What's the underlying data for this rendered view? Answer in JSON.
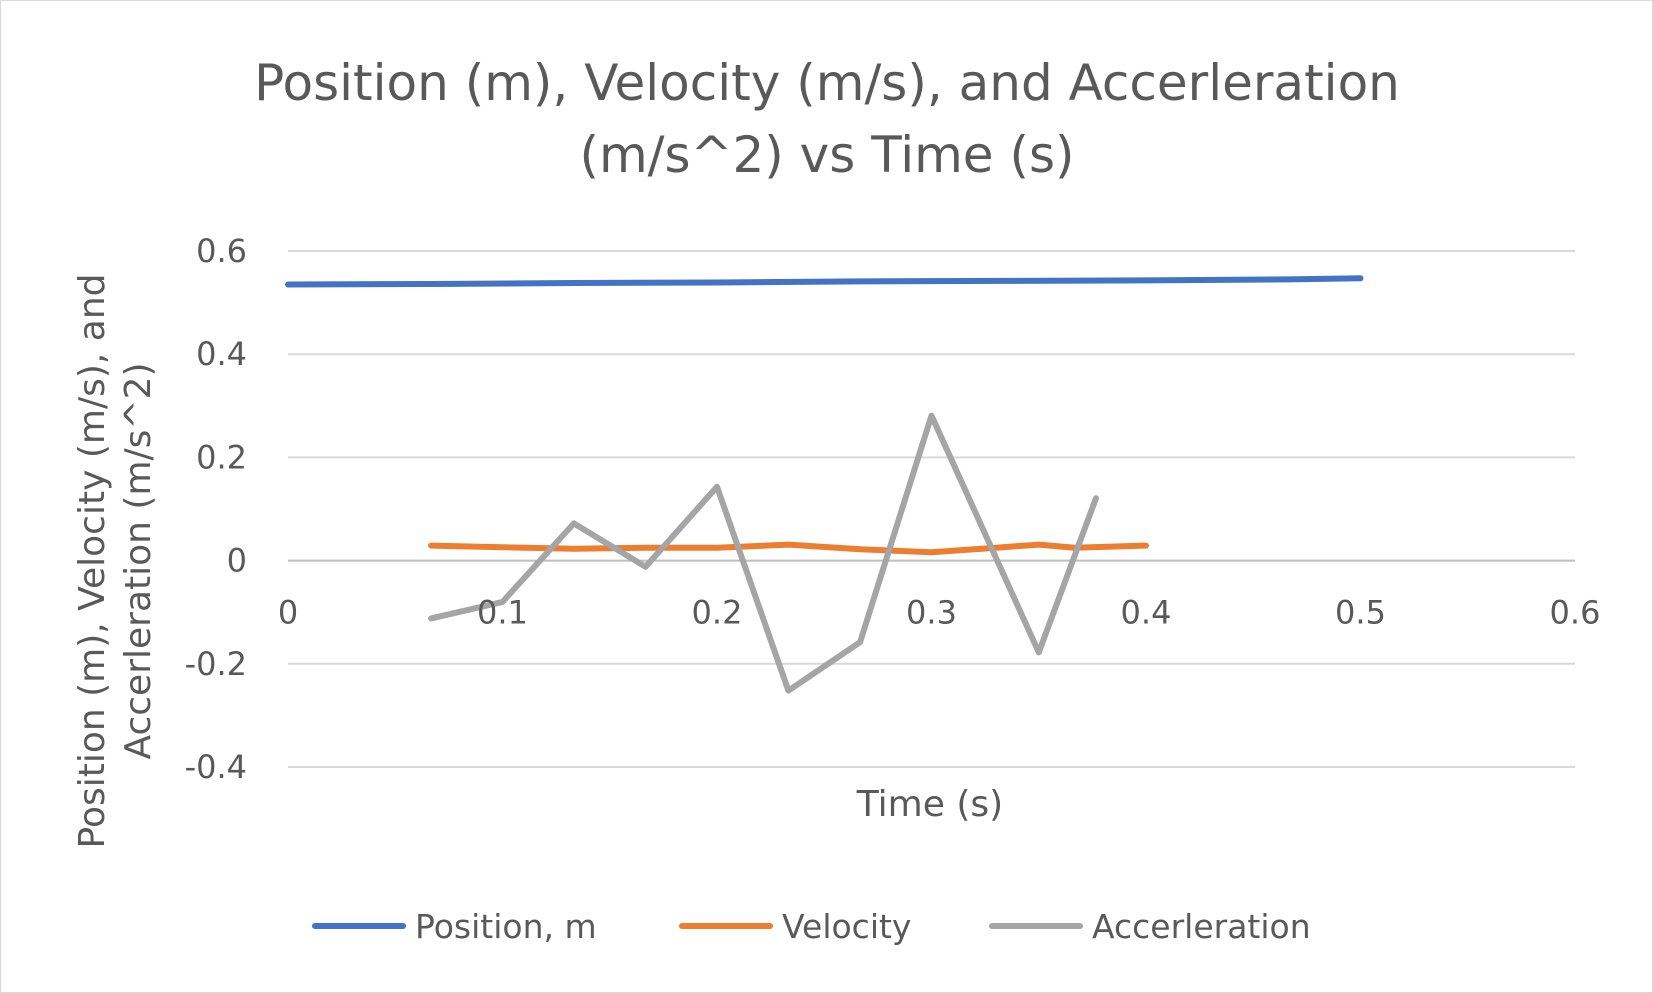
{
  "chart_data": {
    "type": "line",
    "title_lines": [
      "Position (m), Velocity (m/s), and Accerleration",
      "(m/s^2) vs Time (s)"
    ],
    "xlabel": "Time (s)",
    "ylabel_lines": [
      "Position (m), Velocity (m/s), and",
      "Accerleration (m/s^2)"
    ],
    "xlim": [
      0,
      0.6
    ],
    "ylim": [
      -0.4,
      0.6
    ],
    "x_ticks": [
      "0",
      "0.1",
      "0.2",
      "0.3",
      "0.4",
      "0.5",
      "0.6"
    ],
    "y_ticks": [
      "0.6",
      "0.4",
      "0.2",
      "0",
      "-0.2",
      "-0.4"
    ],
    "grid": true,
    "legend_position": "bottom",
    "series": [
      {
        "name": "Position, m",
        "color": "#4472C4",
        "x": [
          0,
          0.0667,
          0.1333,
          0.2,
          0.2667,
          0.3333,
          0.4,
          0.4667,
          0.5
        ],
        "y": [
          0.535,
          0.536,
          0.538,
          0.539,
          0.541,
          0.542,
          0.543,
          0.545,
          0.547
        ]
      },
      {
        "name": "Velocity",
        "color": "#ED7D31",
        "x": [
          0.0667,
          0.1,
          0.1333,
          0.1667,
          0.2,
          0.2333,
          0.2667,
          0.3,
          0.3333,
          0.35,
          0.3667,
          0.4
        ],
        "y": [
          0.029,
          0.026,
          0.023,
          0.025,
          0.025,
          0.031,
          0.022,
          0.016,
          0.026,
          0.031,
          0.025,
          0.029
        ]
      },
      {
        "name": "Accerleration",
        "color": "#A5A5A5",
        "x": [
          0.0667,
          0.1,
          0.1333,
          0.1667,
          0.2,
          0.2333,
          0.2667,
          0.3,
          0.35,
          0.3767
        ],
        "y": [
          -0.112,
          -0.08,
          0.072,
          -0.012,
          0.143,
          -0.252,
          -0.158,
          0.281,
          -0.178,
          0.121
        ]
      }
    ]
  }
}
